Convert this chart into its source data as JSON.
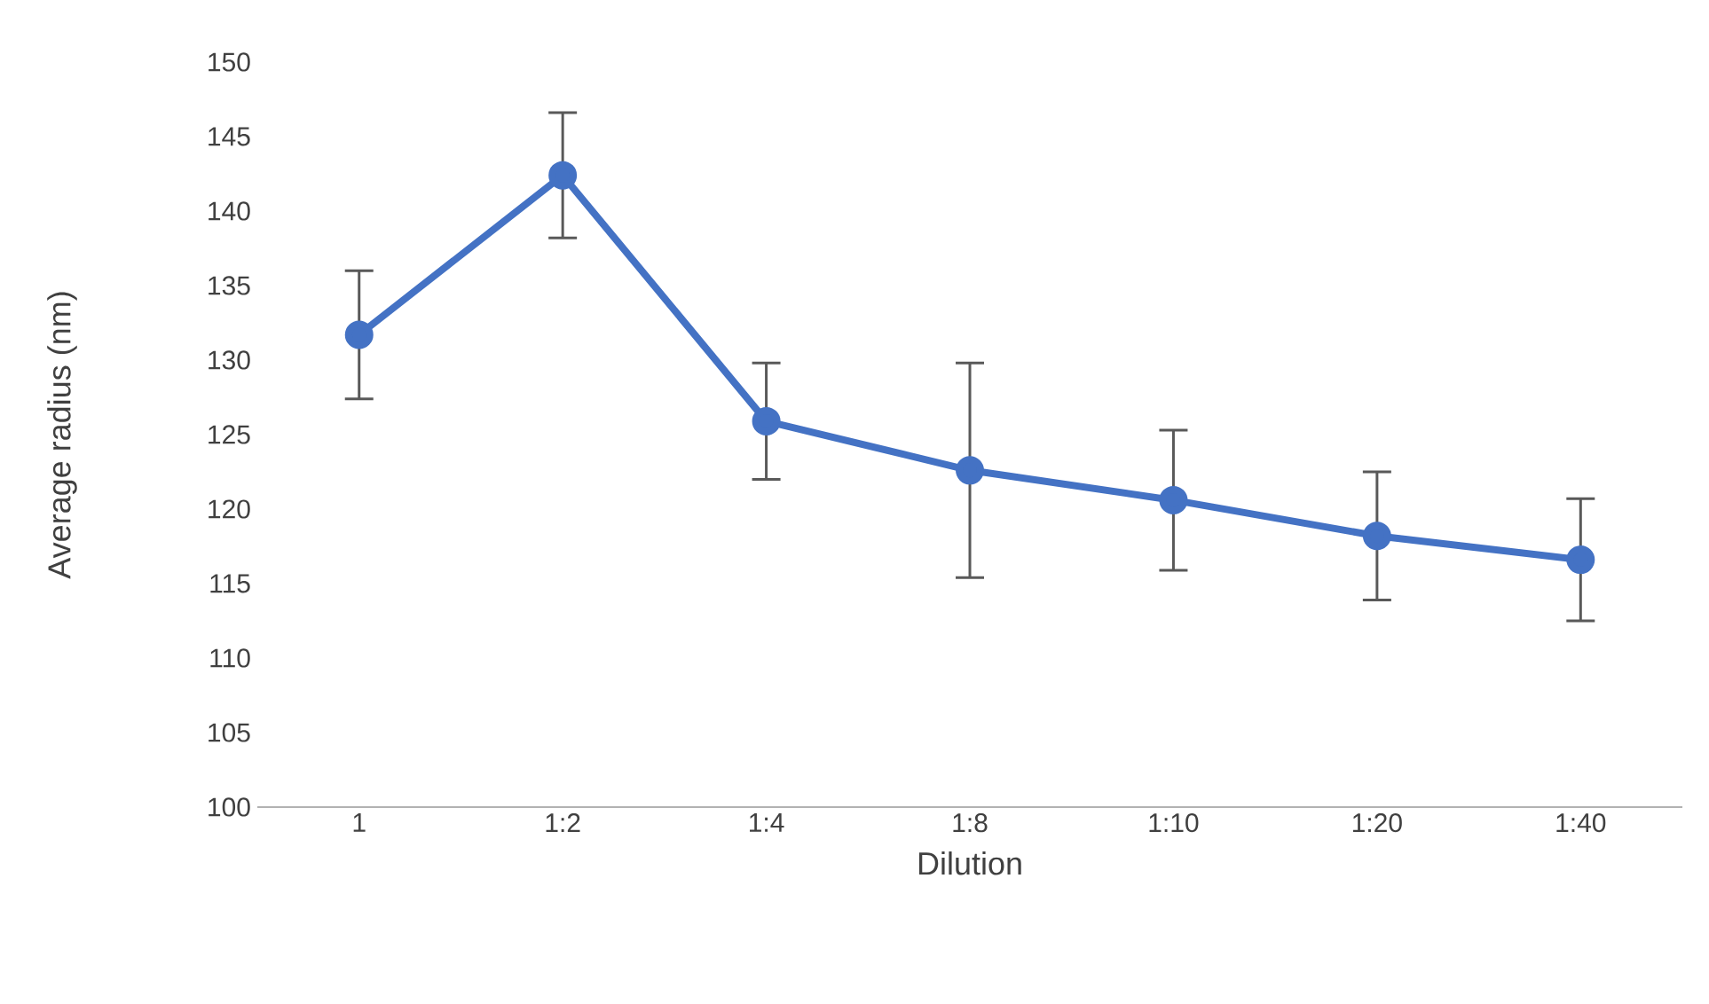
{
  "chart_data": {
    "type": "line",
    "xlabel": "Dilution",
    "ylabel": "Average radius (nm)",
    "categories": [
      "1",
      "1:2",
      "1:4",
      "1:8",
      "1:10",
      "1:20",
      "1:40"
    ],
    "values": [
      131.7,
      142.4,
      125.9,
      122.6,
      120.6,
      118.2,
      116.6
    ],
    "errors": [
      4.3,
      4.2,
      3.9,
      7.2,
      4.7,
      4.3,
      4.1
    ],
    "color": "#4472c4",
    "marker": "circle",
    "line_style": "solid",
    "ylim": [
      100,
      150
    ],
    "yticks": [
      100,
      105,
      110,
      115,
      120,
      125,
      130,
      135,
      140,
      145,
      150
    ],
    "grid": false
  }
}
